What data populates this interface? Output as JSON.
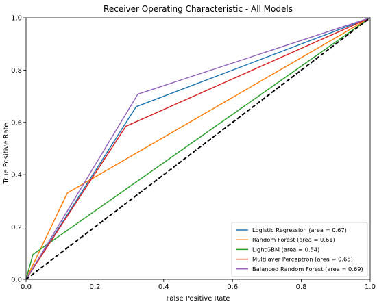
{
  "chart_data": {
    "type": "line",
    "title": "Receiver Operating Characteristic - All Models",
    "xlabel": "False Positive Rate",
    "ylabel": "True Positive Rate",
    "xlim": [
      0,
      1
    ],
    "ylim": [
      0,
      1
    ],
    "xticks": [
      "0.0",
      "0.2",
      "0.4",
      "0.6",
      "0.8",
      "1.0"
    ],
    "yticks": [
      "0.0",
      "0.2",
      "0.4",
      "0.6",
      "0.8",
      "1.0"
    ],
    "grid": false,
    "legend_position": "lower-right",
    "series": [
      {
        "name": "Logistic Regression (area = 0.67)",
        "color": "#1f77b4",
        "x": [
          0,
          0.32,
          1
        ],
        "y": [
          0,
          0.66,
          1
        ]
      },
      {
        "name": "Random Forest (area = 0.61)",
        "color": "#ff7f0e",
        "x": [
          0,
          0.12,
          1
        ],
        "y": [
          0,
          0.33,
          1
        ]
      },
      {
        "name": "LightGBM (area = 0.54)",
        "color": "#2ca02c",
        "x": [
          0,
          0.02,
          1
        ],
        "y": [
          0,
          0.095,
          1
        ]
      },
      {
        "name": "Multilayer Perceptron (area = 0.65)",
        "color": "#d62728",
        "x": [
          0,
          0.29,
          1
        ],
        "y": [
          0,
          0.585,
          1
        ]
      },
      {
        "name": "Balanced Random Forest  (area = 0.69)",
        "color": "#9467bd",
        "x": [
          0,
          0.325,
          1
        ],
        "y": [
          0,
          0.708,
          1
        ]
      }
    ],
    "reference_line": {
      "style": "dashed",
      "color": "#000000",
      "x": [
        0,
        1
      ],
      "y": [
        0,
        1
      ]
    }
  }
}
